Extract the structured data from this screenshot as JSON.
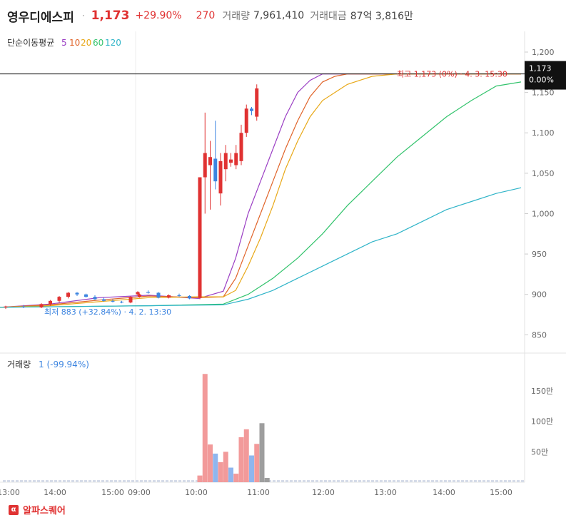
{
  "header": {
    "stock_name": "영우디에스피",
    "separator": "·",
    "price": "1,173",
    "change_pct": "+29.90%",
    "change_abs": "270",
    "volume_label": "거래량",
    "volume_value": "7,961,410",
    "amount_label": "거래대금",
    "amount_value": "87억 3,816만"
  },
  "legend": {
    "title": "단순이동평균",
    "periods": [
      {
        "label": "5",
        "color": "#9b3fc4"
      },
      {
        "label": "10",
        "color": "#e0642a"
      },
      {
        "label": "20",
        "color": "#e8a817"
      },
      {
        "label": "60",
        "color": "#32c36c"
      },
      {
        "label": "120",
        "color": "#2fb4c8"
      }
    ]
  },
  "volume_legend": {
    "label": "거래량",
    "value": "1 (-99.94%)"
  },
  "annotations": {
    "high": "최고 1,173 (0%) · 4. 3. 15:30",
    "low": "최저 883 (+32.84%) · 4. 2. 13:30",
    "current_price": "1,173",
    "current_pct": "0.00%"
  },
  "footer": {
    "logo": "α",
    "brand": "알파스퀘어"
  },
  "chart_data": {
    "type": "candlestick",
    "price_axis": {
      "ticks": [
        "1,200",
        "1,150",
        "1,100",
        "1,050",
        "1,000",
        "950",
        "900",
        "850"
      ],
      "ylim": [
        830,
        1215
      ]
    },
    "volume_axis": {
      "ticks": [
        "150만",
        "100만",
        "50만"
      ],
      "ylim": [
        0,
        1900000
      ]
    },
    "time_axis": {
      "ticks": [
        "13:00",
        "14:00",
        "15:00",
        "09:00",
        "10:00",
        "11:00",
        "12:00",
        "13:00",
        "14:00",
        "15:00"
      ]
    },
    "candles": [
      {
        "t": "4.2 13:00",
        "o": 884,
        "h": 886,
        "l": 882,
        "c": 885
      },
      {
        "t": "4.2 13:20",
        "o": 885,
        "h": 887,
        "l": 883,
        "c": 884
      },
      {
        "t": "4.2 13:40",
        "o": 884,
        "h": 889,
        "l": 883,
        "c": 888
      },
      {
        "t": "4.2 13:50",
        "o": 888,
        "h": 893,
        "l": 886,
        "c": 892
      },
      {
        "t": "4.2 14:00",
        "o": 892,
        "h": 898,
        "l": 890,
        "c": 897
      },
      {
        "t": "4.2 14:10",
        "o": 897,
        "h": 903,
        "l": 895,
        "c": 902
      },
      {
        "t": "4.2 14:20",
        "o": 902,
        "h": 903,
        "l": 898,
        "c": 900
      },
      {
        "t": "4.2 14:30",
        "o": 900,
        "h": 901,
        "l": 896,
        "c": 897
      },
      {
        "t": "4.2 14:40",
        "o": 897,
        "h": 899,
        "l": 893,
        "c": 894
      },
      {
        "t": "4.2 14:50",
        "o": 894,
        "h": 896,
        "l": 891,
        "c": 892
      },
      {
        "t": "4.2 15:00",
        "o": 892,
        "h": 894,
        "l": 890,
        "c": 891
      },
      {
        "t": "4.2 15:10",
        "o": 891,
        "h": 892,
        "l": 889,
        "c": 890
      },
      {
        "t": "4.2 15:20",
        "o": 890,
        "h": 898,
        "l": 889,
        "c": 897
      },
      {
        "t": "4.2 15:30",
        "o": 897,
        "h": 901,
        "l": 896,
        "c": 900
      },
      {
        "t": "4.3 09:00",
        "o": 900,
        "h": 904,
        "l": 899,
        "c": 903
      },
      {
        "t": "4.3 09:10",
        "o": 903,
        "h": 905,
        "l": 901,
        "c": 902
      },
      {
        "t": "4.3 09:20",
        "o": 902,
        "h": 903,
        "l": 895,
        "c": 896
      },
      {
        "t": "4.3 09:30",
        "o": 896,
        "h": 900,
        "l": 895,
        "c": 899
      },
      {
        "t": "4.3 09:40",
        "o": 899,
        "h": 901,
        "l": 897,
        "c": 898
      },
      {
        "t": "4.3 09:50",
        "o": 898,
        "h": 899,
        "l": 894,
        "c": 895
      },
      {
        "t": "4.3 10:00",
        "o": 896,
        "h": 1045,
        "l": 894,
        "c": 1045
      },
      {
        "t": "4.3 10:05",
        "o": 1045,
        "h": 1125,
        "l": 1000,
        "c": 1075
      },
      {
        "t": "4.3 10:10",
        "o": 1060,
        "h": 1090,
        "l": 1005,
        "c": 1070
      },
      {
        "t": "4.3 10:15",
        "o": 1068,
        "h": 1115,
        "l": 1030,
        "c": 1040
      },
      {
        "t": "4.3 10:20",
        "o": 1025,
        "h": 1075,
        "l": 1010,
        "c": 1065
      },
      {
        "t": "4.3 10:25",
        "o": 1055,
        "h": 1085,
        "l": 1040,
        "c": 1075
      },
      {
        "t": "4.3 10:30",
        "o": 1063,
        "h": 1075,
        "l": 1058,
        "c": 1067
      },
      {
        "t": "4.3 10:35",
        "o": 1060,
        "h": 1085,
        "l": 1055,
        "c": 1075
      },
      {
        "t": "4.3 10:40",
        "o": 1065,
        "h": 1110,
        "l": 1060,
        "c": 1100
      },
      {
        "t": "4.3 10:45",
        "o": 1100,
        "h": 1135,
        "l": 1095,
        "c": 1130
      },
      {
        "t": "4.3 10:50",
        "o": 1130,
        "h": 1132,
        "l": 1122,
        "c": 1127
      },
      {
        "t": "4.3 10:55",
        "o": 1120,
        "h": 1160,
        "l": 1115,
        "c": 1155
      }
    ],
    "volume": [
      {
        "t": "4.3 10:00",
        "v": 110000,
        "dir": "up"
      },
      {
        "t": "4.3 10:05",
        "v": 1780000,
        "dir": "up"
      },
      {
        "t": "4.3 10:10",
        "v": 620000,
        "dir": "up"
      },
      {
        "t": "4.3 10:15",
        "v": 470000,
        "dir": "down"
      },
      {
        "t": "4.3 10:20",
        "v": 330000,
        "dir": "up"
      },
      {
        "t": "4.3 10:25",
        "v": 500000,
        "dir": "up"
      },
      {
        "t": "4.3 10:30",
        "v": 240000,
        "dir": "down"
      },
      {
        "t": "4.3 10:35",
        "v": 140000,
        "dir": "up"
      },
      {
        "t": "4.3 10:40",
        "v": 740000,
        "dir": "up"
      },
      {
        "t": "4.3 10:45",
        "v": 870000,
        "dir": "up"
      },
      {
        "t": "4.3 10:50",
        "v": 440000,
        "dir": "down"
      },
      {
        "t": "4.3 10:55",
        "v": 630000,
        "dir": "up"
      },
      {
        "t": "4.3 11:00",
        "v": 970000,
        "dir": "flat"
      },
      {
        "t": "4.3 11:05",
        "v": 70000,
        "dir": "flat"
      }
    ],
    "moving_averages": [
      {
        "name": "5",
        "points": [
          [
            0,
            884
          ],
          [
            20,
            888
          ],
          [
            40,
            896
          ],
          [
            60,
            899
          ],
          [
            80,
            895
          ],
          [
            90,
            904
          ],
          [
            95,
            945
          ],
          [
            100,
            1000
          ],
          [
            105,
            1040
          ],
          [
            110,
            1080
          ],
          [
            115,
            1120
          ],
          [
            120,
            1150
          ],
          [
            125,
            1165
          ],
          [
            130,
            1173
          ],
          [
            210,
            1173
          ]
        ]
      },
      {
        "name": "10",
        "points": [
          [
            0,
            884
          ],
          [
            20,
            887
          ],
          [
            40,
            893
          ],
          [
            60,
            898
          ],
          [
            80,
            896
          ],
          [
            90,
            897
          ],
          [
            95,
            920
          ],
          [
            100,
            960
          ],
          [
            105,
            1000
          ],
          [
            110,
            1040
          ],
          [
            115,
            1080
          ],
          [
            120,
            1115
          ],
          [
            125,
            1145
          ],
          [
            130,
            1163
          ],
          [
            135,
            1170
          ],
          [
            140,
            1173
          ],
          [
            210,
            1173
          ]
        ]
      },
      {
        "name": "20",
        "points": [
          [
            0,
            884
          ],
          [
            20,
            886
          ],
          [
            40,
            891
          ],
          [
            60,
            896
          ],
          [
            80,
            897
          ],
          [
            90,
            897
          ],
          [
            95,
            905
          ],
          [
            100,
            935
          ],
          [
            105,
            970
          ],
          [
            110,
            1010
          ],
          [
            115,
            1055
          ],
          [
            120,
            1090
          ],
          [
            125,
            1120
          ],
          [
            130,
            1140
          ],
          [
            140,
            1160
          ],
          [
            150,
            1170
          ],
          [
            160,
            1173
          ],
          [
            210,
            1173
          ]
        ]
      },
      {
        "name": "60",
        "points": [
          [
            0,
            884
          ],
          [
            30,
            885
          ],
          [
            60,
            886
          ],
          [
            90,
            888
          ],
          [
            100,
            900
          ],
          [
            110,
            920
          ],
          [
            120,
            945
          ],
          [
            130,
            975
          ],
          [
            140,
            1010
          ],
          [
            150,
            1040
          ],
          [
            160,
            1070
          ],
          [
            170,
            1095
          ],
          [
            180,
            1120
          ],
          [
            190,
            1140
          ],
          [
            200,
            1158
          ],
          [
            210,
            1163
          ]
        ]
      },
      {
        "name": "120",
        "points": [
          [
            0,
            884
          ],
          [
            30,
            885
          ],
          [
            60,
            886
          ],
          [
            90,
            887
          ],
          [
            100,
            894
          ],
          [
            110,
            905
          ],
          [
            120,
            920
          ],
          [
            130,
            935
          ],
          [
            140,
            950
          ],
          [
            150,
            965
          ],
          [
            160,
            975
          ],
          [
            170,
            990
          ],
          [
            180,
            1005
          ],
          [
            190,
            1015
          ],
          [
            200,
            1025
          ],
          [
            210,
            1032
          ]
        ]
      }
    ]
  }
}
